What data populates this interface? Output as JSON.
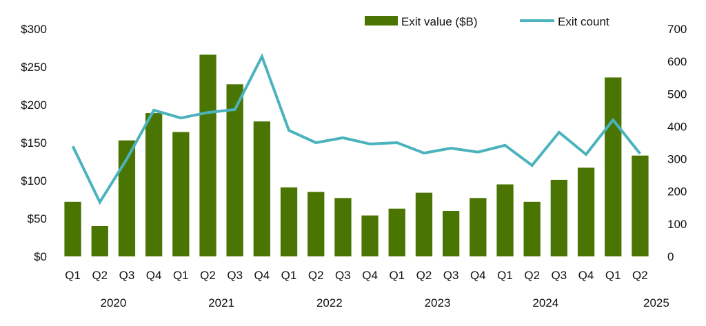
{
  "chart_data": {
    "type": "bar+line",
    "title": "",
    "xlabel": "",
    "ylabel_left": "",
    "ylabel_right": "",
    "categories": [
      "Q1",
      "Q2",
      "Q3",
      "Q4",
      "Q1",
      "Q2",
      "Q3",
      "Q4",
      "Q1",
      "Q2",
      "Q3",
      "Q4",
      "Q1",
      "Q2",
      "Q3",
      "Q4",
      "Q1",
      "Q2",
      "Q3",
      "Q4",
      "Q1",
      "Q2"
    ],
    "years": [
      {
        "label": "2020",
        "span": [
          0,
          3
        ]
      },
      {
        "label": "2021",
        "span": [
          4,
          7
        ]
      },
      {
        "label": "2022",
        "span": [
          8,
          11
        ]
      },
      {
        "label": "2023",
        "span": [
          12,
          15
        ]
      },
      {
        "label": "2024",
        "span": [
          16,
          19
        ]
      },
      {
        "label": "2025",
        "span": [
          20,
          21
        ]
      }
    ],
    "series": [
      {
        "name": "Exit value ($B)",
        "type": "bar",
        "axis": "left",
        "color": "#4a7502",
        "values": [
          72,
          40,
          153,
          189,
          164,
          266,
          227,
          178,
          91,
          85,
          77,
          54,
          63,
          84,
          60,
          77,
          95,
          72,
          101,
          117,
          236,
          133
        ]
      },
      {
        "name": "Exit count",
        "type": "line",
        "axis": "right",
        "color": "#4bb3bd",
        "values": [
          339,
          167,
          300,
          450,
          426,
          443,
          452,
          615,
          388,
          350,
          365,
          346,
          350,
          318,
          333,
          321,
          342,
          280,
          382,
          314,
          420,
          316
        ]
      }
    ],
    "left_axis": {
      "range": [
        0,
        300
      ],
      "ticks": [
        0,
        50,
        100,
        150,
        200,
        250,
        300
      ],
      "tick_labels": [
        "$0",
        "$50",
        "$100",
        "$150",
        "$200",
        "$250",
        "$300"
      ]
    },
    "right_axis": {
      "range": [
        0,
        700
      ],
      "ticks": [
        0,
        100,
        200,
        300,
        400,
        500,
        600,
        700
      ],
      "tick_labels": [
        "0",
        "100",
        "200",
        "300",
        "400",
        "500",
        "600",
        "700"
      ]
    },
    "grid": false,
    "legend": {
      "position": "top-right",
      "items": [
        {
          "label": "Exit value ($B)",
          "kind": "bar"
        },
        {
          "label": "Exit count",
          "kind": "line"
        }
      ]
    }
  }
}
